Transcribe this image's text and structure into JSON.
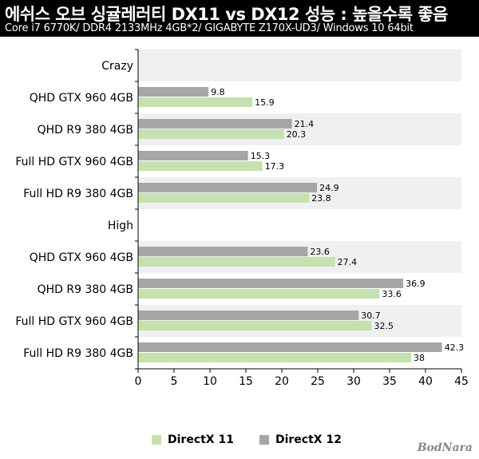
{
  "header": {
    "title": "에쉬스 오브 싱귤레러티 DX11 vs DX12 성능 : 높을수록 좋음",
    "subtitle": "Core i7 6770K/ DDR4 2133MHz 4GB*2/ GIGABYTE Z170X-UD3/ Windows 10 64bit"
  },
  "logo_text": "BodNara",
  "colors": {
    "dx11": "#c6e0b0",
    "dx12": "#a6a6a6",
    "band": "#f0f0f0"
  },
  "chart_data": {
    "type": "bar",
    "orientation": "horizontal",
    "groups": [
      {
        "name": "Crazy",
        "categories": [
          "QHD GTX 960 4GB",
          "QHD R9 380 4GB",
          "Full HD GTX 960 4GB",
          "Full HD R9 380 4GB"
        ],
        "series": [
          {
            "name": "DirectX 12",
            "values": [
              9.8,
              21.4,
              15.3,
              24.9
            ]
          },
          {
            "name": "DirectX 11",
            "values": [
              15.9,
              20.3,
              17.3,
              23.8
            ]
          }
        ]
      },
      {
        "name": "High",
        "categories": [
          "QHD GTX 960 4GB",
          "QHD R9 380 4GB",
          "Full HD GTX 960 4GB",
          "Full HD R9 380 4GB"
        ],
        "series": [
          {
            "name": "DirectX 12",
            "values": [
              23.6,
              36.9,
              30.7,
              42.3
            ]
          },
          {
            "name": "DirectX 11",
            "values": [
              27.4,
              33.6,
              32.5,
              38
            ]
          }
        ]
      }
    ],
    "xlim": [
      0,
      45
    ],
    "xticks": [
      0,
      5,
      10,
      15,
      20,
      25,
      30,
      35,
      40,
      45
    ],
    "legend": [
      {
        "name": "DirectX 11",
        "color": "#c6e0b0"
      },
      {
        "name": "DirectX 12",
        "color": "#a6a6a6"
      }
    ],
    "legend_position": "bottom",
    "grid": false
  }
}
